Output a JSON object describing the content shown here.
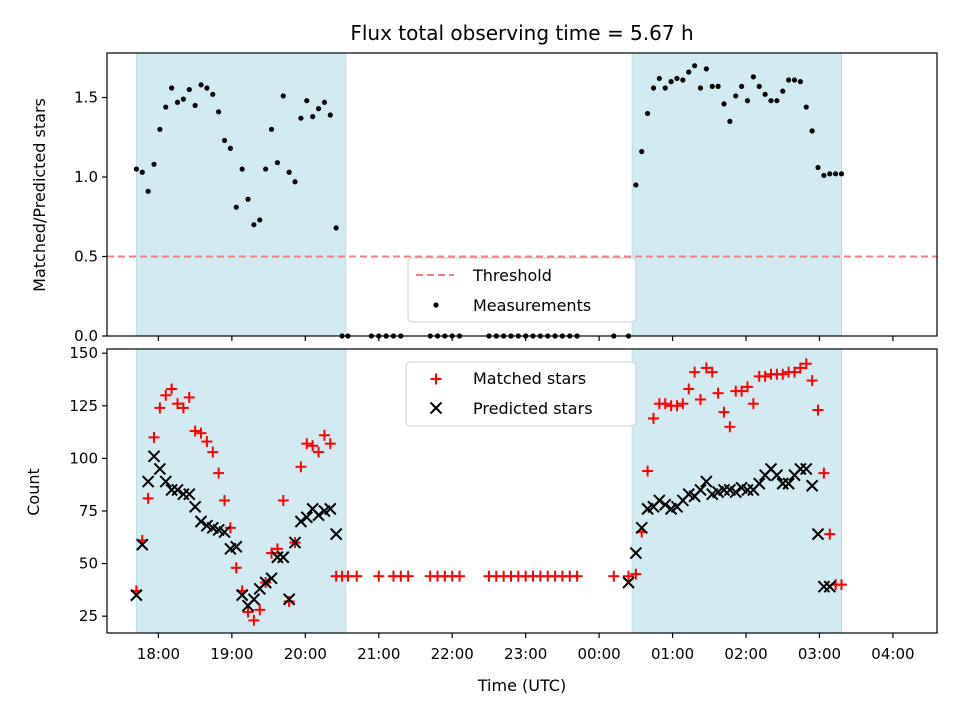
{
  "chart_data": [
    {
      "type": "scatter",
      "title": "Flux total observing time = 5.67 h",
      "xlabel": "",
      "ylabel": "Matched/Predicted stars",
      "x_unit": "hours since 17:00 UTC",
      "xlim": [
        0.3,
        11.6
      ],
      "ylim": [
        0.0,
        1.78
      ],
      "yticks": [
        0.0,
        0.5,
        1.0,
        1.5
      ],
      "ytick_labels": [
        "0.0",
        "0.5",
        "1.0",
        "1.5"
      ],
      "shaded_intervals": [
        [
          0.7,
          3.55
        ],
        [
          7.45,
          10.3
        ]
      ],
      "shade_color": "#add8e6",
      "threshold": {
        "label": "Threshold",
        "value": 0.5,
        "color": "#f08080"
      },
      "legend": {
        "location": "lower center",
        "entries": [
          "Threshold",
          "Measurements"
        ]
      },
      "series": [
        {
          "name": "Measurements",
          "color": "#000000",
          "marker": "dot",
          "x": [
            0.7,
            0.78,
            0.86,
            0.94,
            1.02,
            1.1,
            1.18,
            1.26,
            1.34,
            1.42,
            1.5,
            1.58,
            1.66,
            1.74,
            1.82,
            1.9,
            1.98,
            2.06,
            2.14,
            2.22,
            2.3,
            2.38,
            2.46,
            2.54,
            2.62,
            2.7,
            2.78,
            2.86,
            2.94,
            3.02,
            3.1,
            3.18,
            3.26,
            3.34,
            3.42,
            3.5,
            3.58,
            3.9,
            4.0,
            4.1,
            4.2,
            4.3,
            4.7,
            4.8,
            4.9,
            5.0,
            5.1,
            5.5,
            5.6,
            5.7,
            5.8,
            5.9,
            6.0,
            6.1,
            6.2,
            6.3,
            6.4,
            6.5,
            6.6,
            6.7,
            7.2,
            7.4,
            7.5,
            7.58,
            7.66,
            7.74,
            7.82,
            7.9,
            7.98,
            8.06,
            8.14,
            8.22,
            8.3,
            8.38,
            8.46,
            8.54,
            8.62,
            8.7,
            8.78,
            8.86,
            8.94,
            9.02,
            9.1,
            9.18,
            9.26,
            9.34,
            9.42,
            9.5,
            9.58,
            9.66,
            9.74,
            9.82,
            9.9,
            9.98,
            10.06,
            10.14,
            10.22,
            10.3
          ],
          "y": [
            1.05,
            1.03,
            0.91,
            1.08,
            1.3,
            1.44,
            1.56,
            1.47,
            1.49,
            1.55,
            1.45,
            1.58,
            1.56,
            1.52,
            1.41,
            1.23,
            1.18,
            0.81,
            1.05,
            0.86,
            0.7,
            0.73,
            1.05,
            1.3,
            1.09,
            1.51,
            1.03,
            0.97,
            1.37,
            1.48,
            1.38,
            1.43,
            1.47,
            1.39,
            0.68,
            0.0,
            0.0,
            0.0,
            0.0,
            0.0,
            0.0,
            0.0,
            0.0,
            0.0,
            0.0,
            0.0,
            0.0,
            0.0,
            0.0,
            0.0,
            0.0,
            0.0,
            0.0,
            0.0,
            0.0,
            0.0,
            0.0,
            0.0,
            0.0,
            0.0,
            0.0,
            0.0,
            0.95,
            1.16,
            1.4,
            1.56,
            1.62,
            1.56,
            1.6,
            1.62,
            1.61,
            1.66,
            1.7,
            1.56,
            1.68,
            1.57,
            1.57,
            1.46,
            1.35,
            1.51,
            1.57,
            1.48,
            1.63,
            1.57,
            1.52,
            1.48,
            1.48,
            1.54,
            1.61,
            1.61,
            1.6,
            1.44,
            1.29,
            1.06,
            1.01,
            1.02,
            1.02,
            1.02
          ]
        }
      ]
    },
    {
      "type": "scatter",
      "title": "",
      "xlabel": "Time (UTC)",
      "ylabel": "Count",
      "x_unit": "hours since 17:00 UTC",
      "xlim": [
        0.3,
        11.6
      ],
      "ylim": [
        17,
        152
      ],
      "xticks": [
        1,
        2,
        3,
        4,
        5,
        6,
        7,
        8,
        9,
        10,
        11
      ],
      "xtick_labels": [
        "18:00",
        "19:00",
        "20:00",
        "21:00",
        "22:00",
        "23:00",
        "00:00",
        "01:00",
        "02:00",
        "03:00",
        "04:00"
      ],
      "yticks": [
        25,
        50,
        75,
        100,
        125,
        150
      ],
      "ytick_labels": [
        "25",
        "50",
        "75",
        "100",
        "125",
        "150"
      ],
      "shaded_intervals": [
        [
          0.7,
          3.55
        ],
        [
          7.45,
          10.3
        ]
      ],
      "shade_color": "#add8e6",
      "legend": {
        "location": "upper center",
        "entries": [
          "Matched stars",
          "Predicted stars"
        ]
      },
      "series": [
        {
          "name": "Matched stars",
          "color": "#ff0000",
          "marker": "plus",
          "x": [
            0.7,
            0.78,
            0.86,
            0.94,
            1.02,
            1.1,
            1.18,
            1.26,
            1.34,
            1.42,
            1.5,
            1.58,
            1.66,
            1.74,
            1.82,
            1.9,
            1.98,
            2.06,
            2.14,
            2.22,
            2.3,
            2.38,
            2.46,
            2.54,
            2.62,
            2.7,
            2.78,
            2.86,
            2.94,
            3.02,
            3.1,
            3.18,
            3.26,
            3.34,
            3.42,
            3.5,
            3.58,
            3.7,
            4.0,
            4.2,
            4.3,
            4.4,
            4.7,
            4.8,
            4.9,
            5.0,
            5.1,
            5.5,
            5.6,
            5.7,
            5.8,
            5.9,
            6.0,
            6.1,
            6.2,
            6.3,
            6.4,
            6.5,
            6.6,
            6.7,
            7.2,
            7.4,
            7.5,
            7.58,
            7.66,
            7.74,
            7.82,
            7.9,
            7.98,
            8.06,
            8.14,
            8.22,
            8.3,
            8.38,
            8.46,
            8.54,
            8.62,
            8.7,
            8.78,
            8.86,
            8.94,
            9.02,
            9.1,
            9.18,
            9.26,
            9.34,
            9.42,
            9.5,
            9.58,
            9.66,
            9.74,
            9.82,
            9.9,
            9.98,
            10.06,
            10.14,
            10.22,
            10.3
          ],
          "y": [
            37,
            61,
            81,
            110,
            124,
            130,
            133,
            126,
            124,
            129,
            113,
            112,
            108,
            103,
            93,
            80,
            67,
            48,
            37,
            27,
            23,
            28,
            41,
            55,
            57,
            80,
            32,
            60,
            96,
            107,
            106,
            103,
            111,
            107,
            44,
            44,
            44,
            44,
            44,
            44,
            44,
            44,
            44,
            44,
            44,
            44,
            44,
            44,
            44,
            44,
            44,
            44,
            44,
            44,
            44,
            44,
            44,
            44,
            44,
            44,
            44,
            44,
            45,
            65,
            94,
            119,
            126,
            126,
            125,
            125,
            126,
            133,
            141,
            128,
            143,
            141,
            131,
            122,
            115,
            132,
            132,
            134,
            126,
            139,
            139,
            140,
            140,
            140,
            141,
            141,
            143,
            145,
            137,
            123,
            93,
            64,
            40,
            40
          ]
        },
        {
          "name": "Predicted stars",
          "color": "#000000",
          "marker": "x",
          "x": [
            0.7,
            0.78,
            0.86,
            0.94,
            1.02,
            1.1,
            1.18,
            1.26,
            1.34,
            1.42,
            1.5,
            1.58,
            1.66,
            1.74,
            1.82,
            1.9,
            1.98,
            2.06,
            2.14,
            2.22,
            2.3,
            2.38,
            2.46,
            2.54,
            2.62,
            2.7,
            2.78,
            2.86,
            2.94,
            3.02,
            3.1,
            3.18,
            3.26,
            3.34,
            3.42,
            7.4,
            7.5,
            7.58,
            7.66,
            7.74,
            7.82,
            7.9,
            7.98,
            8.06,
            8.14,
            8.22,
            8.3,
            8.38,
            8.46,
            8.54,
            8.62,
            8.7,
            8.78,
            8.86,
            8.94,
            9.02,
            9.1,
            9.18,
            9.26,
            9.34,
            9.42,
            9.5,
            9.58,
            9.66,
            9.74,
            9.82,
            9.9,
            9.98,
            10.06,
            10.14
          ],
          "y": [
            35,
            59,
            89,
            101,
            95,
            89,
            85,
            85,
            83,
            83,
            77,
            70,
            68,
            67,
            66,
            65,
            57,
            58,
            35,
            30,
            33,
            38,
            41,
            43,
            53,
            53,
            33,
            60,
            70,
            72,
            76,
            73,
            75,
            76,
            64,
            41,
            55,
            67,
            76,
            77,
            80,
            78,
            76,
            77,
            80,
            83,
            82,
            85,
            89,
            83,
            84,
            85,
            85,
            84,
            86,
            85,
            85,
            88,
            92,
            95,
            92,
            88,
            88,
            92,
            95,
            95,
            87,
            64,
            39,
            39
          ]
        }
      ]
    }
  ]
}
